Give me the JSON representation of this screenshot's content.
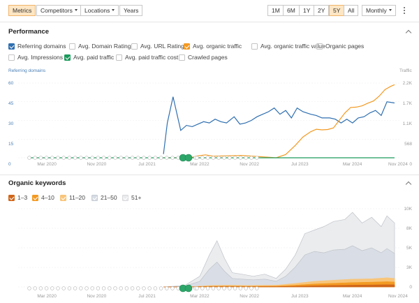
{
  "toolbar": {
    "left_tabs": [
      {
        "label": "Metrics",
        "active": true,
        "dropdown": false
      },
      {
        "label": "Competitors",
        "active": false,
        "dropdown": true
      },
      {
        "label": "Locations",
        "active": false,
        "dropdown": true
      },
      {
        "label": "Years",
        "active": false,
        "dropdown": false
      }
    ],
    "ranges": [
      {
        "label": "1M",
        "active": false
      },
      {
        "label": "6M",
        "active": false
      },
      {
        "label": "1Y",
        "active": false
      },
      {
        "label": "2Y",
        "active": false
      },
      {
        "label": "5Y",
        "active": true
      },
      {
        "label": "All",
        "active": false
      }
    ],
    "interval": "Monthly",
    "more_icon": "vertical-dots-icon"
  },
  "performance": {
    "title": "Performance",
    "metrics_row1": [
      {
        "label": "Referring domains",
        "checked": true,
        "color": "#2f6fb0"
      },
      {
        "label": "Avg. Domain Rating",
        "checked": false,
        "color": ""
      },
      {
        "label": "Avg. URL Rating",
        "checked": false,
        "color": ""
      },
      {
        "label": "Avg. organic traffic",
        "checked": true,
        "color": "#f39a22"
      },
      {
        "label": "Avg. organic traffic value",
        "checked": false,
        "color": ""
      },
      {
        "label": "Organic pages",
        "checked": false,
        "color": ""
      }
    ],
    "metrics_row2": [
      {
        "label": "Avg. Impressions",
        "checked": false,
        "color": ""
      },
      {
        "label": "Avg. paid traffic",
        "checked": true,
        "color": "#1a9a5c"
      },
      {
        "label": "Avg. paid traffic cost",
        "checked": false,
        "color": ""
      },
      {
        "label": "Crawled pages",
        "checked": false,
        "color": ""
      }
    ],
    "left_axis_title": "Referring domains",
    "right_axis_title": "Traffic",
    "left_ticks": [
      "60",
      "45",
      "30",
      "15",
      "0"
    ],
    "right_ticks": [
      "2.2K",
      "1.7K",
      "1.1K",
      "568",
      "0"
    ]
  },
  "x_ticks": [
    "Mar 2020",
    "Nov 2020",
    "Jul 2021",
    "Mar 2022",
    "Nov 2022",
    "Jul 2023",
    "Mar 2024",
    "Nov 2024"
  ],
  "organic_keywords": {
    "title": "Organic keywords",
    "legend": [
      {
        "label": "1–3",
        "color": "#d0661a"
      },
      {
        "label": "4–10",
        "color": "#f39a22"
      },
      {
        "label": "11–20",
        "color": "#f8c57a"
      },
      {
        "label": "21–50",
        "color": "#d7dce3"
      },
      {
        "label": "51+",
        "color": "#e9eaec"
      }
    ],
    "right_ticks": [
      "10K",
      "8K",
      "5K",
      "3K",
      "0"
    ]
  },
  "chart_data": [
    {
      "type": "line",
      "x": [
        "Mar 2020",
        "Nov 2020",
        "Jul 2021",
        "Mar 2022",
        "Nov 2022",
        "Jul 2023",
        "Mar 2024",
        "Nov 2024"
      ],
      "series": [
        {
          "name": "Referring domains",
          "axis": "left",
          "color": "#2f6fb0",
          "points": [
            [
              0.71,
              3
            ],
            [
              0.73,
              28
            ],
            [
              0.76,
              49
            ],
            [
              0.8,
              22
            ],
            [
              0.83,
              26
            ],
            [
              0.86,
              25
            ],
            [
              0.89,
              27
            ],
            [
              0.92,
              29
            ],
            [
              0.95,
              28
            ],
            [
              0.98,
              31
            ],
            [
              1.01,
              29
            ],
            [
              1.04,
              28
            ],
            [
              1.08,
              33
            ],
            [
              1.11,
              27
            ],
            [
              1.14,
              28
            ],
            [
              1.17,
              30
            ],
            [
              1.2,
              33
            ],
            [
              1.23,
              35
            ],
            [
              1.26,
              37
            ],
            [
              1.29,
              40
            ],
            [
              1.32,
              35
            ],
            [
              1.35,
              38
            ],
            [
              1.38,
              32
            ],
            [
              1.41,
              40
            ],
            [
              1.44,
              37
            ],
            [
              1.48,
              35
            ],
            [
              1.51,
              34
            ],
            [
              1.54,
              32
            ],
            [
              1.58,
              32
            ],
            [
              1.61,
              31
            ],
            [
              1.64,
              28
            ],
            [
              1.67,
              31
            ],
            [
              1.7,
              28
            ],
            [
              1.73,
              32
            ],
            [
              1.76,
              33
            ],
            [
              1.79,
              36
            ],
            [
              1.82,
              38
            ],
            [
              1.85,
              34
            ],
            [
              1.88,
              45
            ],
            [
              1.92,
              44
            ]
          ]
        },
        {
          "name": "Avg. organic traffic",
          "axis": "right",
          "color": "#f39a22",
          "points": [
            [
              0.71,
              0
            ],
            [
              0.85,
              0
            ],
            [
              0.89,
              60
            ],
            [
              0.93,
              90
            ],
            [
              0.97,
              50
            ],
            [
              1.04,
              60
            ],
            [
              1.12,
              70
            ],
            [
              1.2,
              40
            ],
            [
              1.3,
              0
            ],
            [
              1.35,
              100
            ],
            [
              1.4,
              380
            ],
            [
              1.44,
              640
            ],
            [
              1.48,
              800
            ],
            [
              1.51,
              880
            ],
            [
              1.54,
              860
            ],
            [
              1.57,
              870
            ],
            [
              1.6,
              920
            ],
            [
              1.63,
              1150
            ],
            [
              1.66,
              1380
            ],
            [
              1.69,
              1550
            ],
            [
              1.72,
              1560
            ],
            [
              1.75,
              1600
            ],
            [
              1.78,
              1680
            ],
            [
              1.81,
              1750
            ],
            [
              1.84,
              1900
            ],
            [
              1.87,
              2100
            ],
            [
              1.9,
              2200
            ],
            [
              1.92,
              2250
            ]
          ]
        },
        {
          "name": "Avg. paid traffic",
          "axis": "right",
          "color": "#1a9a5c",
          "points": [
            [
              0,
              0
            ],
            [
              1.92,
              0
            ]
          ]
        }
      ],
      "left_ylim": [
        0,
        60
      ],
      "right_ylim": [
        0,
        2300
      ]
    },
    {
      "type": "area",
      "x": [
        "Mar 2020",
        "Nov 2020",
        "Jul 2021",
        "Mar 2022",
        "Nov 2022",
        "Jul 2023",
        "Mar 2024",
        "Nov 2024"
      ],
      "series": [
        {
          "name": "51+",
          "color": "#e9eaec",
          "points": [
            [
              0.71,
              0
            ],
            [
              0.82,
              200
            ],
            [
              0.9,
              1500
            ],
            [
              0.95,
              4500
            ],
            [
              0.99,
              6500
            ],
            [
              1.03,
              4000
            ],
            [
              1.07,
              2000
            ],
            [
              1.12,
              1800
            ],
            [
              1.18,
              1500
            ],
            [
              1.24,
              1800
            ],
            [
              1.3,
              1200
            ],
            [
              1.35,
              2500
            ],
            [
              1.4,
              4500
            ],
            [
              1.45,
              7500
            ],
            [
              1.5,
              8000
            ],
            [
              1.55,
              8500
            ],
            [
              1.6,
              9200
            ],
            [
              1.66,
              9500
            ],
            [
              1.7,
              10500
            ],
            [
              1.75,
              9000
            ],
            [
              1.8,
              9800
            ],
            [
              1.85,
              8500
            ],
            [
              1.88,
              10000
            ],
            [
              1.92,
              9000
            ]
          ]
        },
        {
          "name": "21–50",
          "color": "#d7dce3",
          "points": [
            [
              0.71,
              0
            ],
            [
              0.82,
              100
            ],
            [
              0.9,
              800
            ],
            [
              0.95,
              2500
            ],
            [
              0.99,
              3500
            ],
            [
              1.03,
              2200
            ],
            [
              1.07,
              1200
            ],
            [
              1.12,
              1100
            ],
            [
              1.18,
              1000
            ],
            [
              1.24,
              1100
            ],
            [
              1.3,
              800
            ],
            [
              1.35,
              1500
            ],
            [
              1.4,
              2800
            ],
            [
              1.45,
              4500
            ],
            [
              1.5,
              5000
            ],
            [
              1.55,
              4800
            ],
            [
              1.6,
              5200
            ],
            [
              1.66,
              5300
            ],
            [
              1.7,
              5800
            ],
            [
              1.75,
              5100
            ],
            [
              1.8,
              5500
            ],
            [
              1.85,
              4800
            ],
            [
              1.88,
              5400
            ],
            [
              1.92,
              4700
            ]
          ]
        },
        {
          "name": "11–20",
          "color": "#f8c57a",
          "points": [
            [
              0.71,
              0
            ],
            [
              0.86,
              50
            ],
            [
              0.95,
              200
            ],
            [
              1.05,
              250
            ],
            [
              1.15,
              200
            ],
            [
              1.3,
              250
            ],
            [
              1.4,
              500
            ],
            [
              1.5,
              800
            ],
            [
              1.6,
              950
            ],
            [
              1.7,
              1100
            ],
            [
              1.8,
              1150
            ],
            [
              1.88,
              1300
            ],
            [
              1.92,
              1200
            ]
          ]
        },
        {
          "name": "4–10",
          "color": "#f39a22",
          "points": [
            [
              0.71,
              0
            ],
            [
              0.86,
              30
            ],
            [
              0.95,
              100
            ],
            [
              1.05,
              120
            ],
            [
              1.15,
              100
            ],
            [
              1.3,
              120
            ],
            [
              1.4,
              250
            ],
            [
              1.5,
              420
            ],
            [
              1.6,
              520
            ],
            [
              1.7,
              620
            ],
            [
              1.8,
              680
            ],
            [
              1.88,
              750
            ],
            [
              1.92,
              700
            ]
          ]
        },
        {
          "name": "1–3",
          "color": "#d0661a",
          "points": [
            [
              0.71,
              0
            ],
            [
              0.86,
              10
            ],
            [
              0.95,
              40
            ],
            [
              1.05,
              50
            ],
            [
              1.15,
              40
            ],
            [
              1.3,
              50
            ],
            [
              1.4,
              100
            ],
            [
              1.5,
              170
            ],
            [
              1.6,
              220
            ],
            [
              1.7,
              260
            ],
            [
              1.8,
              280
            ],
            [
              1.88,
              310
            ],
            [
              1.92,
              300
            ]
          ]
        }
      ],
      "ylim": [
        0,
        11000
      ]
    }
  ]
}
